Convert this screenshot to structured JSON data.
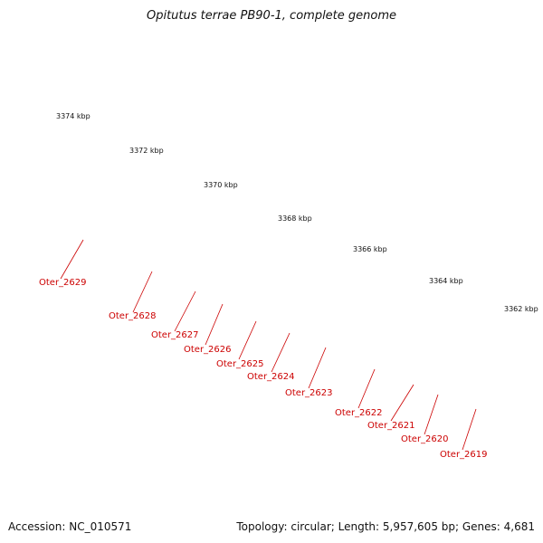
{
  "title": "Opitutus terrae PB90-1, complete genome",
  "footer": {
    "accession": "Accession: NC_010571",
    "summary": "Topology: circular; Length: 5,957,605 bp; Genes: 4,681"
  },
  "colors": {
    "backbone": "#888888",
    "tick": "#1a7a1a",
    "gene_label": "#cc0000",
    "red_gene": "#ee1111",
    "olive_gene": "#6b8e23",
    "gray_gene": "#666666",
    "cyan_gene": "#22dddd",
    "navy_gene": "#1a1a7a",
    "orange_gene": "#ff8c00",
    "blue_gene": "#1111ee"
  },
  "scale_labels": [
    "3374 kbp",
    "3372 kbp",
    "3370 kbp",
    "3368 kbp",
    "3366 kbp",
    "3364 kbp",
    "3362 kbp"
  ],
  "gene_labels": [
    "Oter_2629",
    "Oter_2628",
    "Oter_2627",
    "Oter_2626",
    "Oter_2625",
    "Oter_2624",
    "Oter_2623",
    "Oter_2622",
    "Oter_2621",
    "Oter_2620",
    "Oter_2619"
  ]
}
